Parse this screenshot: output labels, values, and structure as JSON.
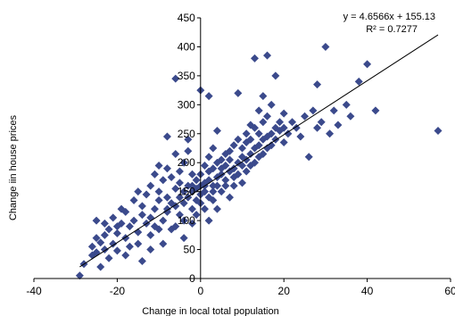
{
  "chart_data": {
    "type": "scatter",
    "title": "",
    "xlabel": "Change in local total population",
    "ylabel": "Change iin house prices",
    "xlim": [
      -40,
      60
    ],
    "ylim": [
      0,
      450
    ],
    "x_ticks": [
      "-40",
      "-20",
      "0",
      "20",
      "40",
      "60"
    ],
    "y_ticks": [
      "0",
      "50",
      "100",
      "150",
      "200",
      "250",
      "300",
      "350",
      "400",
      "450"
    ],
    "grid": false,
    "legend": "none",
    "marker_color": "#3b4a8c",
    "trendline": {
      "slope": 4.6566,
      "intercept": 155.13,
      "x_range": [
        -29,
        57
      ],
      "equation_label": "y = 4.6566x + 155.13",
      "r2_label": "R² = 0.7277"
    },
    "points": [
      [
        -29,
        5
      ],
      [
        -28,
        25
      ],
      [
        -26,
        40
      ],
      [
        -26,
        55
      ],
      [
        -25,
        70
      ],
      [
        -25,
        45
      ],
      [
        -24,
        20
      ],
      [
        -24,
        62
      ],
      [
        -23,
        50
      ],
      [
        -23,
        75
      ],
      [
        -22,
        35
      ],
      [
        -22,
        85
      ],
      [
        -21,
        60
      ],
      [
        -21,
        105
      ],
      [
        -20,
        78
      ],
      [
        -20,
        48
      ],
      [
        -19,
        120
      ],
      [
        -19,
        95
      ],
      [
        -18,
        70
      ],
      [
        -18,
        115
      ],
      [
        -17,
        55
      ],
      [
        -17,
        90
      ],
      [
        -16,
        135
      ],
      [
        -16,
        100
      ],
      [
        -15,
        80
      ],
      [
        -15,
        150
      ],
      [
        -15,
        60
      ],
      [
        -14,
        110
      ],
      [
        -14,
        125
      ],
      [
        -13,
        95
      ],
      [
        -13,
        145
      ],
      [
        -12,
        75
      ],
      [
        -12,
        160
      ],
      [
        -12,
        105
      ],
      [
        -11,
        120
      ],
      [
        -11,
        180
      ],
      [
        -11,
        90
      ],
      [
        -10,
        135
      ],
      [
        -10,
        195
      ],
      [
        -10,
        150
      ],
      [
        -9,
        100
      ],
      [
        -9,
        170
      ],
      [
        -9,
        60
      ],
      [
        -8,
        140
      ],
      [
        -8,
        190
      ],
      [
        -8,
        115
      ],
      [
        -8,
        245
      ],
      [
        -7,
        130
      ],
      [
        -7,
        175
      ],
      [
        -7,
        85
      ],
      [
        -6,
        155
      ],
      [
        -6,
        215
      ],
      [
        -6,
        125
      ],
      [
        -6,
        345
      ],
      [
        -5,
        140
      ],
      [
        -5,
        185
      ],
      [
        -5,
        110
      ],
      [
        -5,
        165
      ],
      [
        -4,
        150
      ],
      [
        -4,
        200
      ],
      [
        -4,
        130
      ],
      [
        -4,
        70
      ],
      [
        -3,
        160
      ],
      [
        -3,
        220
      ],
      [
        -3,
        140
      ],
      [
        -3,
        240
      ],
      [
        -2,
        150
      ],
      [
        -2,
        180
      ],
      [
        -2,
        120
      ],
      [
        -2,
        160
      ],
      [
        -1,
        135
      ],
      [
        -1,
        155
      ],
      [
        -1,
        170
      ],
      [
        -1,
        110
      ],
      [
        0,
        160
      ],
      [
        0,
        145
      ],
      [
        0,
        180
      ],
      [
        0,
        130
      ],
      [
        0,
        325
      ],
      [
        1,
        150
      ],
      [
        1,
        165
      ],
      [
        1,
        195
      ],
      [
        1,
        120
      ],
      [
        1,
        160
      ],
      [
        2,
        140
      ],
      [
        2,
        170
      ],
      [
        2,
        210
      ],
      [
        2,
        185
      ],
      [
        2,
        315
      ],
      [
        3,
        160
      ],
      [
        3,
        190
      ],
      [
        3,
        150
      ],
      [
        3,
        225
      ],
      [
        3,
        135
      ],
      [
        4,
        175
      ],
      [
        4,
        200
      ],
      [
        4,
        160
      ],
      [
        4,
        255
      ],
      [
        5,
        180
      ],
      [
        5,
        205
      ],
      [
        5,
        150
      ],
      [
        5,
        190
      ],
      [
        6,
        170
      ],
      [
        6,
        215
      ],
      [
        6,
        195
      ],
      [
        6,
        160
      ],
      [
        7,
        185
      ],
      [
        7,
        220
      ],
      [
        7,
        140
      ],
      [
        7,
        205
      ],
      [
        8,
        190
      ],
      [
        8,
        230
      ],
      [
        8,
        175
      ],
      [
        8,
        160
      ],
      [
        9,
        200
      ],
      [
        9,
        240
      ],
      [
        9,
        180
      ],
      [
        9,
        320
      ],
      [
        10,
        195
      ],
      [
        10,
        225
      ],
      [
        10,
        165
      ],
      [
        10,
        210
      ],
      [
        11,
        205
      ],
      [
        11,
        250
      ],
      [
        11,
        185
      ],
      [
        11,
        235
      ],
      [
        12,
        215
      ],
      [
        12,
        240
      ],
      [
        12,
        195
      ],
      [
        12,
        265
      ],
      [
        13,
        225
      ],
      [
        13,
        260
      ],
      [
        13,
        200
      ],
      [
        13,
        380
      ],
      [
        14,
        230
      ],
      [
        14,
        290
      ],
      [
        14,
        210
      ],
      [
        14,
        250
      ],
      [
        15,
        240
      ],
      [
        15,
        315
      ],
      [
        15,
        215
      ],
      [
        15,
        270
      ],
      [
        16,
        245
      ],
      [
        16,
        280
      ],
      [
        16,
        225
      ],
      [
        16,
        385
      ],
      [
        17,
        250
      ],
      [
        17,
        300
      ],
      [
        17,
        230
      ],
      [
        18,
        260
      ],
      [
        18,
        240
      ],
      [
        18,
        350
      ],
      [
        19,
        255
      ],
      [
        19,
        270
      ],
      [
        20,
        260
      ],
      [
        20,
        235
      ],
      [
        20,
        285
      ],
      [
        21,
        250
      ],
      [
        22,
        270
      ],
      [
        23,
        260
      ],
      [
        24,
        245
      ],
      [
        25,
        280
      ],
      [
        26,
        210
      ],
      [
        27,
        290
      ],
      [
        28,
        335
      ],
      [
        28,
        260
      ],
      [
        29,
        270
      ],
      [
        30,
        400
      ],
      [
        31,
        250
      ],
      [
        32,
        290
      ],
      [
        33,
        265
      ],
      [
        35,
        300
      ],
      [
        36,
        280
      ],
      [
        38,
        340
      ],
      [
        40,
        370
      ],
      [
        42,
        290
      ],
      [
        57,
        255
      ],
      [
        -25,
        100
      ],
      [
        -23,
        95
      ],
      [
        -20,
        90
      ],
      [
        -18,
        40
      ],
      [
        -14,
        30
      ],
      [
        -12,
        50
      ],
      [
        -10,
        85
      ],
      [
        -8,
        120
      ],
      [
        -6,
        90
      ],
      [
        -4,
        100
      ],
      [
        -2,
        95
      ],
      [
        2,
        100
      ],
      [
        4,
        120
      ]
    ]
  }
}
